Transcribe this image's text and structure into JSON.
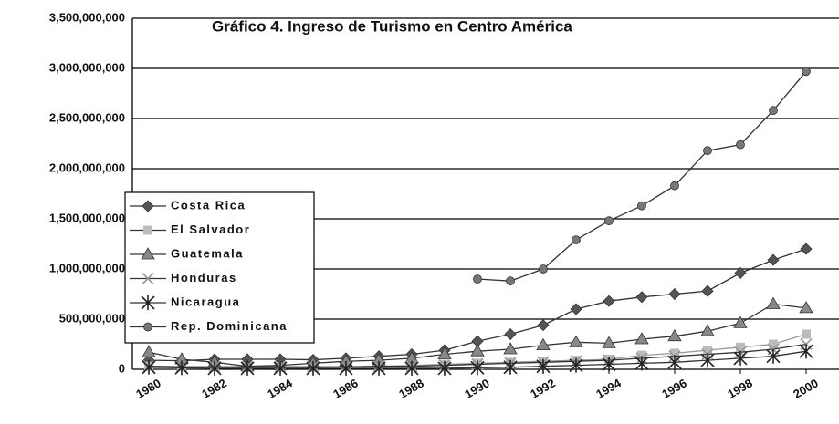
{
  "chart_data": {
    "type": "line",
    "title": "Gráfico 4. Ingreso de Turismo en Centro América",
    "x": [
      1980,
      1981,
      1982,
      1983,
      1984,
      1985,
      1986,
      1987,
      1988,
      1989,
      1990,
      1991,
      1992,
      1993,
      1994,
      1995,
      1996,
      1997,
      1998,
      1999,
      2000
    ],
    "xlim": [
      1979.5,
      2001
    ],
    "xticks": [
      1980,
      1982,
      1984,
      1986,
      1988,
      1990,
      1992,
      1994,
      1996,
      1998,
      2000
    ],
    "ylim": [
      0,
      3500000000
    ],
    "yticks": [
      0,
      {
        "value": 500000000,
        "label": "500,000,000"
      },
      {
        "value": 1000000000,
        "label": "1,000,000,000"
      },
      {
        "value": 1500000000,
        "label": "1,500,000,000"
      },
      {
        "value": 2000000000,
        "label": "2,000,000,000"
      },
      {
        "value": 2500000000,
        "label": "2,500,000,000"
      },
      {
        "value": 3000000000,
        "label": "3,000,000,000"
      },
      {
        "value": 3500000000,
        "label": "3,500,000,000"
      }
    ],
    "grid": true,
    "legend": "left",
    "series": [
      {
        "name": "Costa Rica",
        "color": "#555555",
        "marker": "diamond",
        "values": [
          90000000,
          85000000,
          100000000,
          100000000,
          100000000,
          95000000,
          110000000,
          130000000,
          150000000,
          190000000,
          280000000,
          350000000,
          440000000,
          600000000,
          680000000,
          720000000,
          750000000,
          780000000,
          960000000,
          1090000000,
          1200000000
        ]
      },
      {
        "name": "El Salvador",
        "color": "#bbbbbb",
        "marker": "square",
        "values": [
          30000000,
          25000000,
          20000000,
          20000000,
          20000000,
          20000000,
          25000000,
          30000000,
          40000000,
          50000000,
          60000000,
          70000000,
          80000000,
          90000000,
          100000000,
          140000000,
          160000000,
          190000000,
          220000000,
          250000000,
          350000000
        ]
      },
      {
        "name": "Guatemala",
        "color": "#888888",
        "marker": "triangle",
        "values": [
          170000000,
          100000000,
          70000000,
          30000000,
          40000000,
          60000000,
          80000000,
          90000000,
          110000000,
          150000000,
          180000000,
          200000000,
          240000000,
          270000000,
          260000000,
          300000000,
          330000000,
          380000000,
          460000000,
          650000000,
          610000000
        ]
      },
      {
        "name": "Honduras",
        "color": "#999999",
        "marker": "x",
        "values": [
          30000000,
          25000000,
          25000000,
          25000000,
          25000000,
          25000000,
          25000000,
          30000000,
          30000000,
          40000000,
          50000000,
          60000000,
          70000000,
          80000000,
          90000000,
          110000000,
          130000000,
          150000000,
          170000000,
          200000000,
          250000000
        ]
      },
      {
        "name": "Nicaragua",
        "color": "#222222",
        "marker": "star",
        "values": [
          20000000,
          15000000,
          10000000,
          10000000,
          10000000,
          10000000,
          10000000,
          10000000,
          10000000,
          10000000,
          15000000,
          20000000,
          30000000,
          40000000,
          50000000,
          60000000,
          70000000,
          90000000,
          110000000,
          130000000,
          180000000
        ]
      },
      {
        "name": "Rep. Dominicana",
        "color": "#777777",
        "marker": "circle",
        "values": [
          null,
          null,
          null,
          null,
          null,
          null,
          null,
          null,
          null,
          null,
          900000000,
          880000000,
          1000000000,
          1290000000,
          1480000000,
          1630000000,
          1830000000,
          2180000000,
          2240000000,
          2580000000,
          2970000000
        ]
      }
    ]
  }
}
